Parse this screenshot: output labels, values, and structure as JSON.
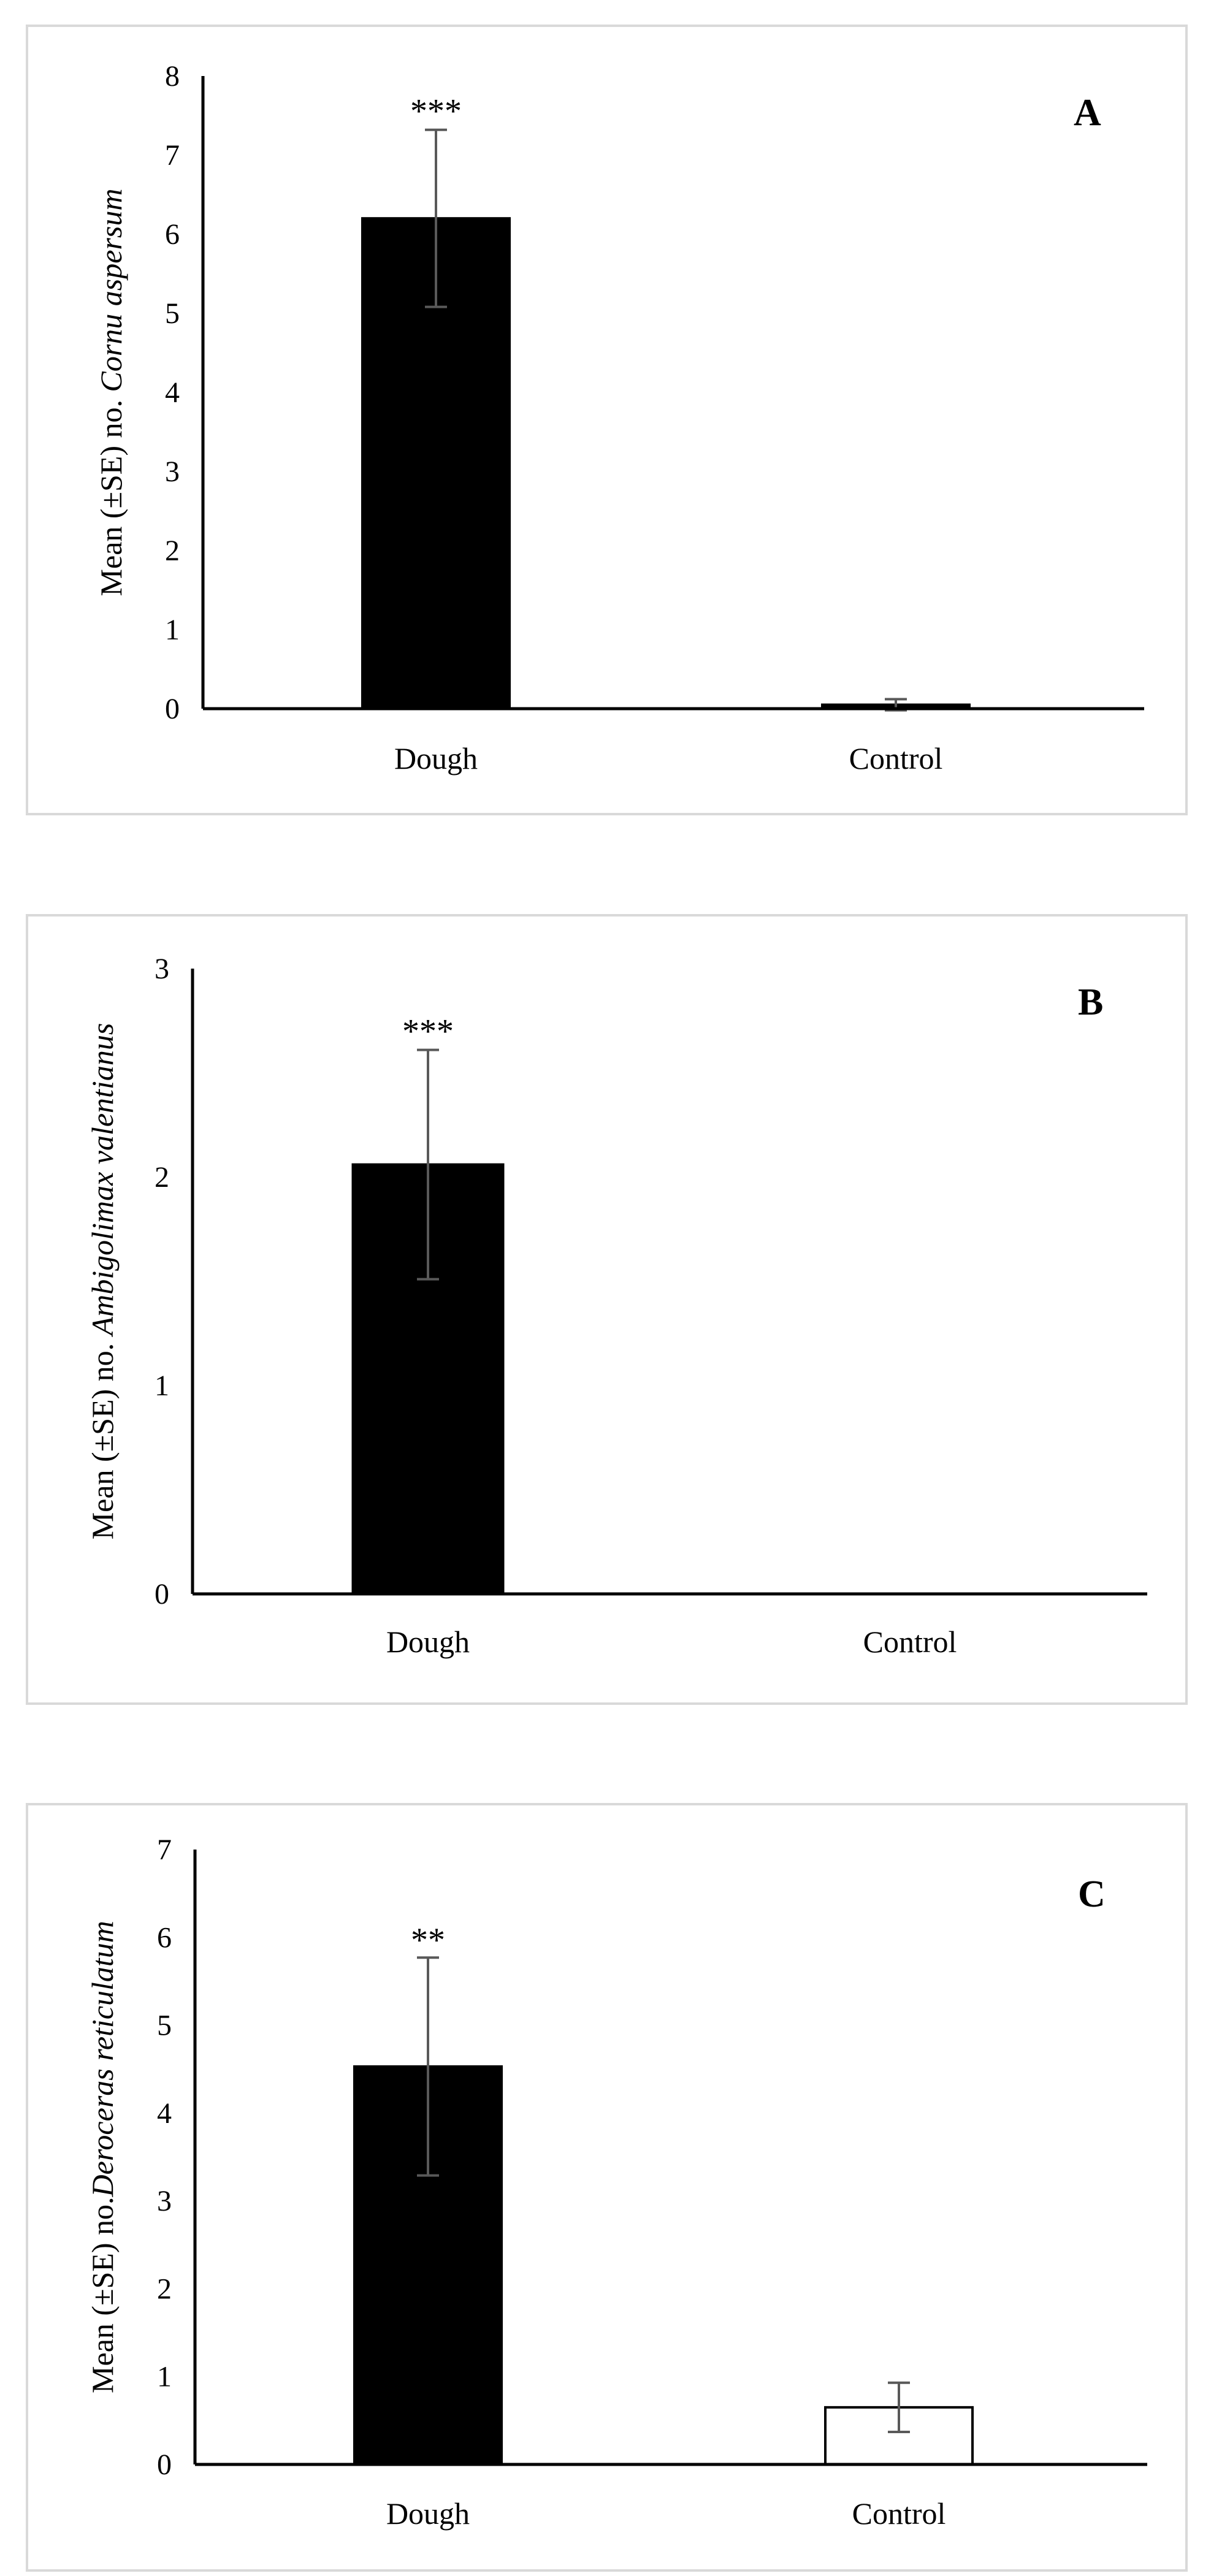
{
  "figure": {
    "panels_count": 3
  },
  "chart_data": [
    {
      "type": "bar",
      "panel_label": "A",
      "categories": [
        "Dough",
        "Control"
      ],
      "values": [
        6.2,
        0.05
      ],
      "errors": [
        1.12,
        0.07
      ],
      "significance": [
        "***",
        ""
      ],
      "bar_colors": [
        "#000000",
        "#000000"
      ],
      "ylabel_prefix": "Mean (±SE) no. ",
      "ylabel_species": "Cornu aspersum",
      "ylim": [
        0,
        8
      ],
      "yticks": [
        "0",
        "1",
        "2",
        "3",
        "4",
        "5",
        "6",
        "7",
        "8"
      ],
      "grid": false,
      "legend": "none"
    },
    {
      "type": "bar",
      "panel_label": "B",
      "categories": [
        "Dough",
        "Control"
      ],
      "values": [
        2.06,
        0
      ],
      "errors": [
        0.55,
        0
      ],
      "significance": [
        "***",
        ""
      ],
      "bar_colors": [
        "#000000",
        "#000000"
      ],
      "ylabel_prefix": "Mean (±SE) no. ",
      "ylabel_species": "Ambigolimax valentianus",
      "ylim": [
        0,
        3
      ],
      "yticks": [
        "0",
        "1",
        "2",
        "3"
      ],
      "grid": false,
      "legend": "none"
    },
    {
      "type": "bar",
      "panel_label": "C",
      "categories": [
        "Dough",
        "Control"
      ],
      "values": [
        4.53,
        0.65
      ],
      "errors": [
        1.24,
        0.28
      ],
      "significance": [
        "**",
        ""
      ],
      "bar_colors": [
        "#000000",
        "#ffffff"
      ],
      "ylabel_prefix": "Mean (±SE) no.",
      "ylabel_species": "Deroceras reticulatum",
      "ylim": [
        0,
        7
      ],
      "yticks": [
        "0",
        "1",
        "2",
        "3",
        "4",
        "5",
        "6",
        "7"
      ],
      "grid": false,
      "legend": "none"
    }
  ]
}
